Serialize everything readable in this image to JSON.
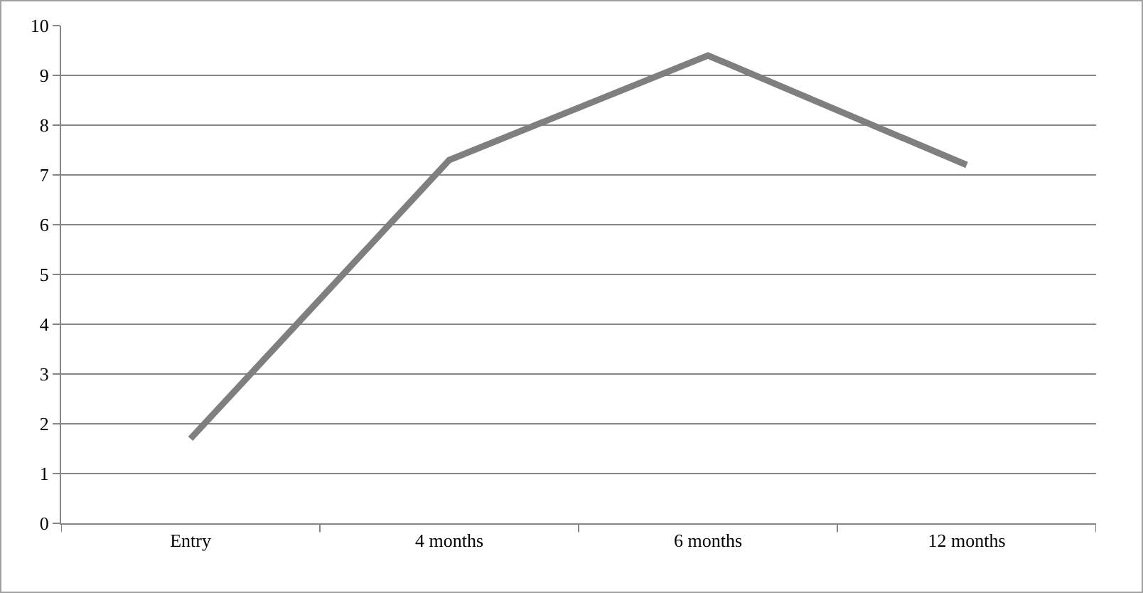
{
  "chart_data": {
    "type": "line",
    "categories": [
      "Entry",
      "4 months",
      "6 months",
      "12 months"
    ],
    "series": [
      {
        "color": "#7f7f7f",
        "values": [
          1.7,
          7.3,
          9.4,
          7.2
        ]
      }
    ],
    "ylim": [
      0,
      10
    ],
    "yticks": [
      0,
      1,
      2,
      3,
      4,
      5,
      6,
      7,
      8,
      9,
      10
    ],
    "grid": "y",
    "marker": "none",
    "line_style": "solid"
  }
}
